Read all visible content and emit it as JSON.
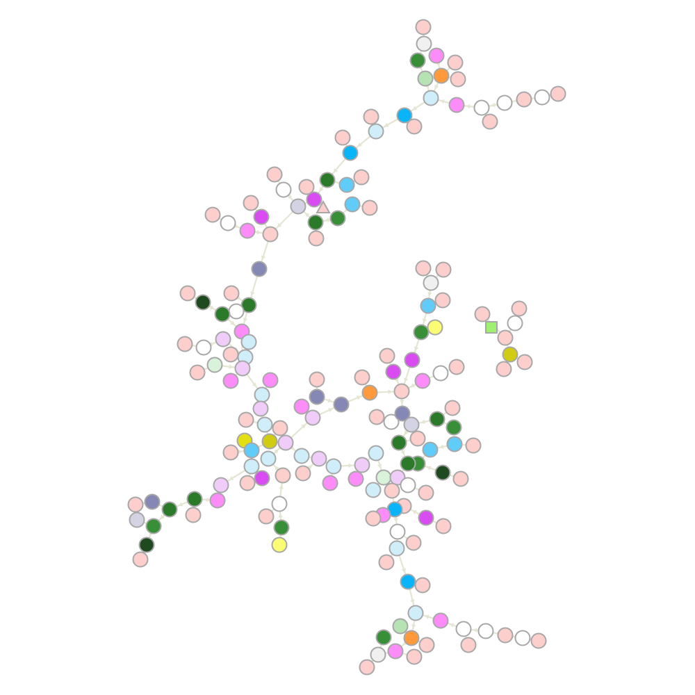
{
  "palette": {
    "pink": "#fccfcd",
    "white": "#ffffff",
    "offwhite": "#eff0ef",
    "lightblue": "#d0eefa",
    "skyblue": "#62ccf9",
    "blue": "#0ab4f9",
    "green": "#398f37",
    "darkgreen": "#2a7a2a",
    "verydarkgreen": "#1f491f",
    "lightgreen": "#b7e2b4",
    "palegreen": "#d9f2da",
    "magenta": "#d84cf2",
    "lightmagenta": "#fb8cf8",
    "lavender": "#f0cdf8",
    "slate": "#8587b4",
    "lightslate": "#d4d3e4",
    "orange": "#fe9a3b",
    "olive": "#cfcc12",
    "yellow": "#e2e013",
    "lightyellow": "#fcfb74",
    "edge": "#e5e5d3",
    "stroke": "#a7a7a7"
  },
  "graph": {
    "node_shapes": [
      "circle",
      "triangle",
      "square"
    ],
    "node_count": 196,
    "special_nodes": [
      {
        "id": "triangle-node",
        "shape": "triangle",
        "color": "pink"
      },
      {
        "id": "square-node",
        "shape": "square",
        "color": "#9ef06e"
      }
    ]
  }
}
